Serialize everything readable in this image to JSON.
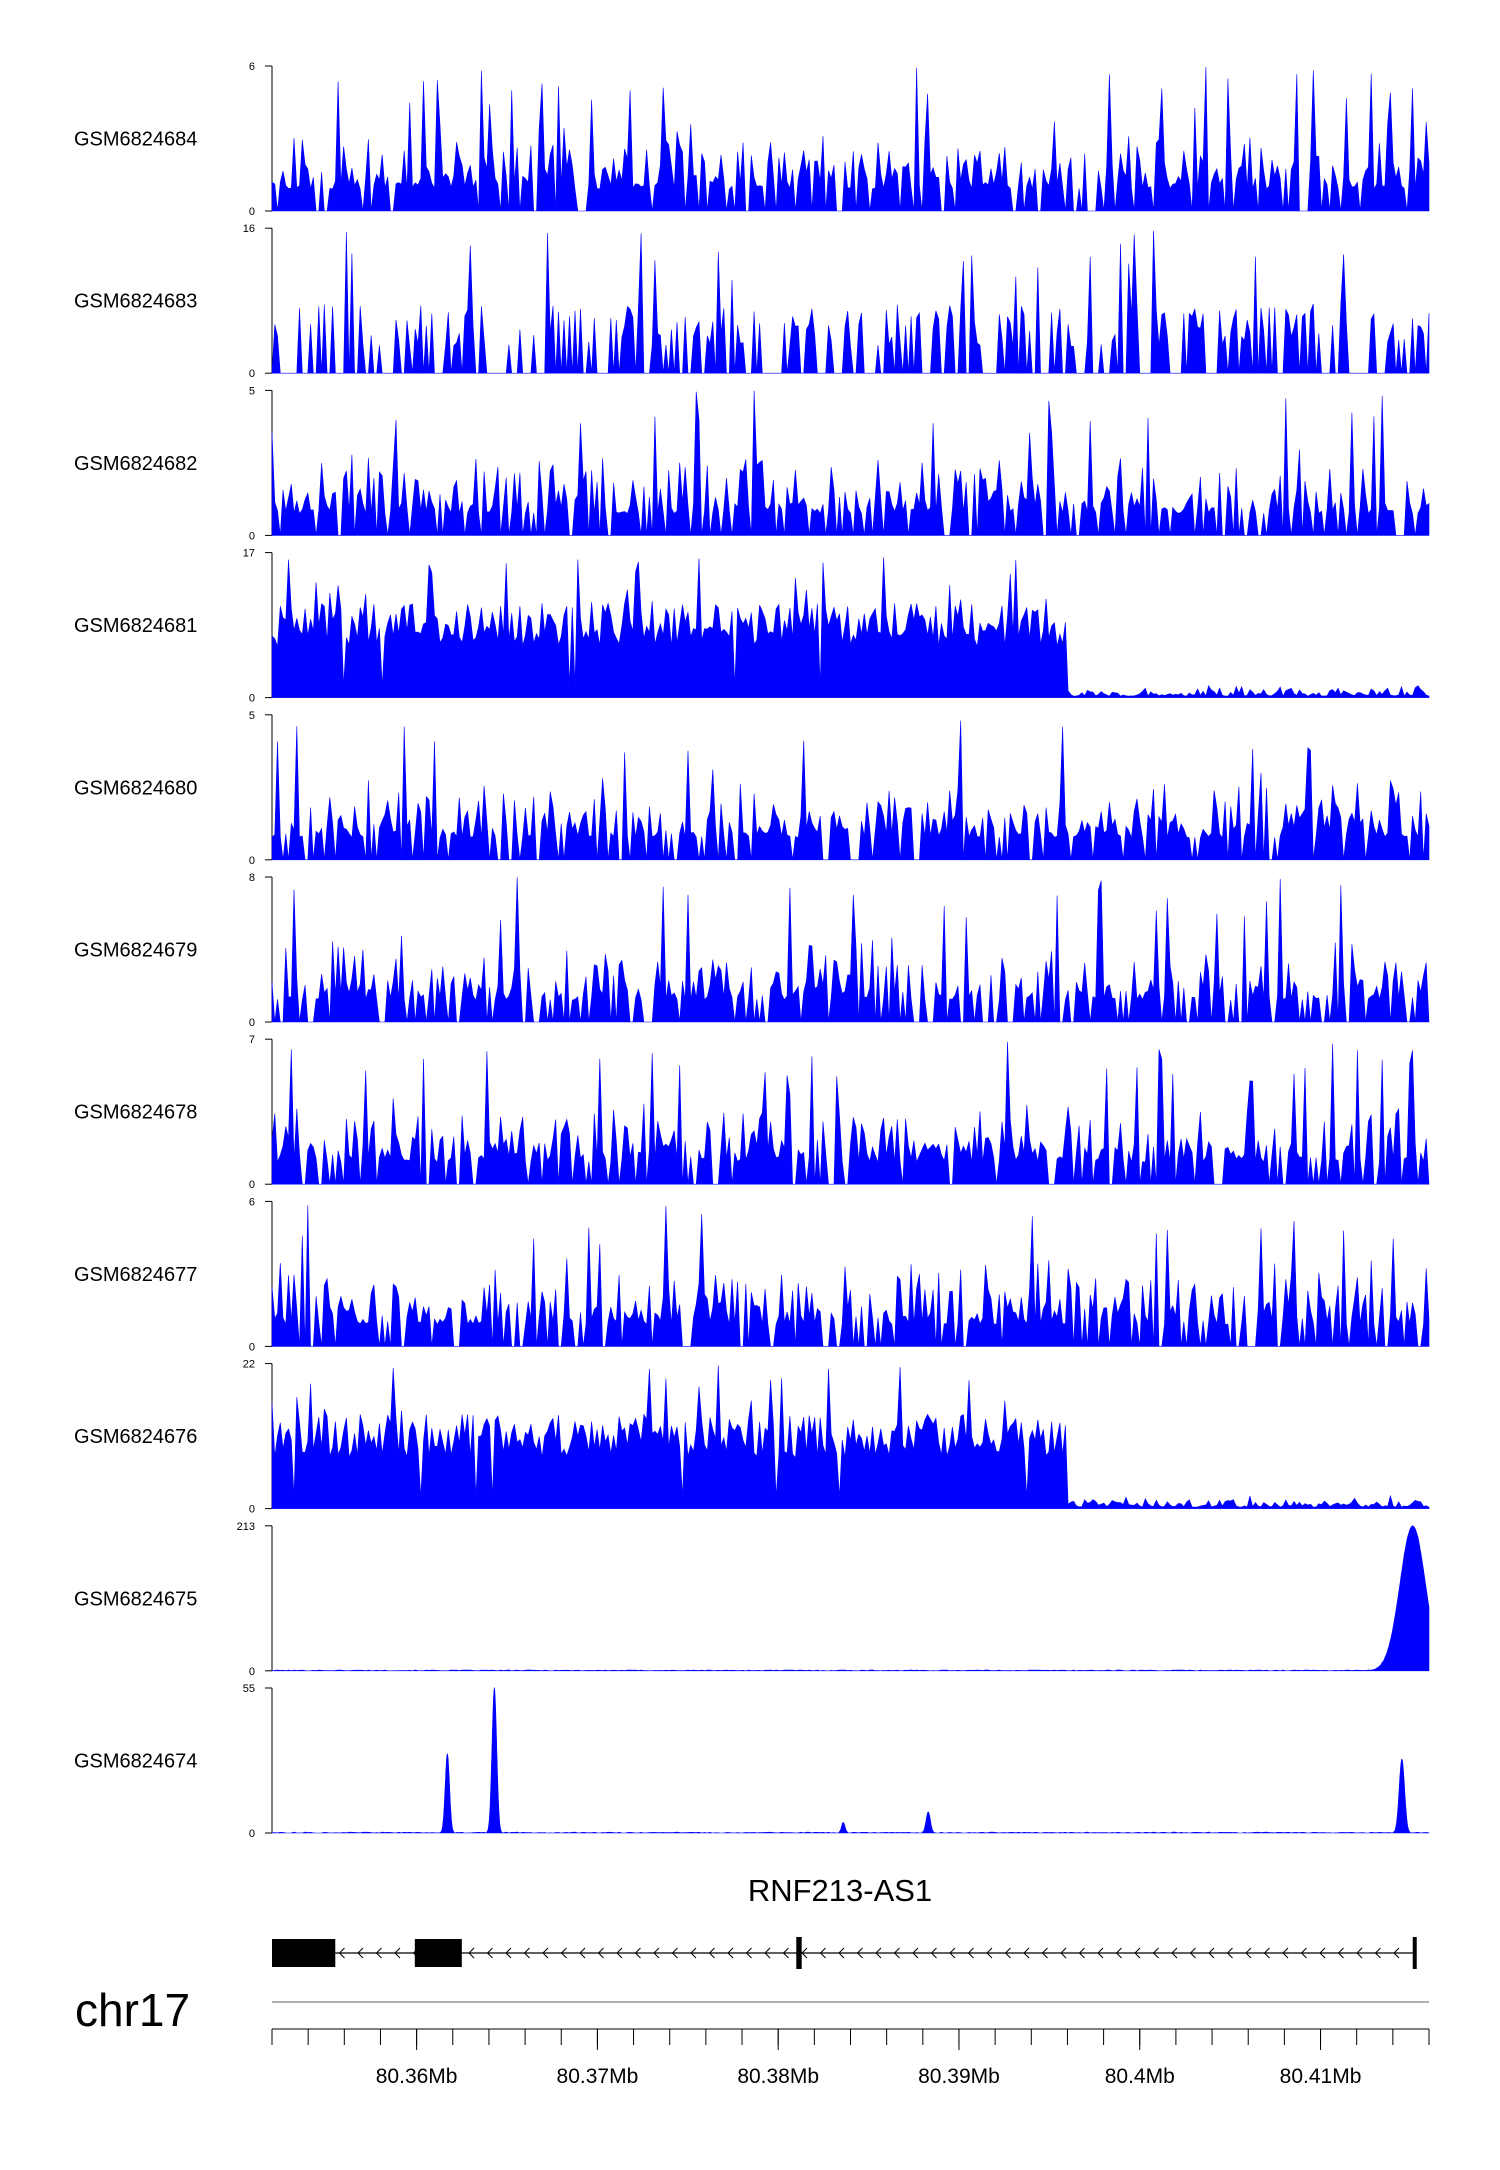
{
  "chart_data": {
    "type": "area",
    "x_unit": "Mb",
    "xlim": [
      80.352,
      80.416
    ],
    "tracks": [
      {
        "name": "GSM6824684",
        "ymax": 6,
        "ymin": 0,
        "profile": "uniform",
        "seed": 11
      },
      {
        "name": "GSM6824683",
        "ymax": 16,
        "ymin": 0,
        "profile": "sparse",
        "seed": 23
      },
      {
        "name": "GSM6824682",
        "ymax": 5,
        "ymin": 0,
        "profile": "uniform",
        "seed": 37
      },
      {
        "name": "GSM6824681",
        "ymax": 17,
        "ymin": 0,
        "profile": "dense_left",
        "seed": 41
      },
      {
        "name": "GSM6824680",
        "ymax": 5,
        "ymin": 0,
        "profile": "uniform",
        "seed": 53
      },
      {
        "name": "GSM6824679",
        "ymax": 8,
        "ymin": 0,
        "profile": "uniform",
        "seed": 67
      },
      {
        "name": "GSM6824678",
        "ymax": 7,
        "ymin": 0,
        "profile": "uniform",
        "seed": 71
      },
      {
        "name": "GSM6824677",
        "ymax": 6,
        "ymin": 0,
        "profile": "uniform",
        "seed": 83
      },
      {
        "name": "GSM6824676",
        "ymax": 22,
        "ymin": 0,
        "profile": "dense_left",
        "seed": 97
      },
      {
        "name": "GSM6824675",
        "ymax": 213,
        "ymin": 0,
        "profile": "peaks",
        "seed": 101,
        "peaks": [
          {
            "x": 80.4151,
            "h": 213,
            "w": 0.0007
          }
        ]
      },
      {
        "name": "GSM6824674",
        "ymax": 55,
        "ymin": 0,
        "profile": "peaks",
        "seed": 113,
        "peaks": [
          {
            "x": 80.3617,
            "h": 30,
            "w": 0.00012
          },
          {
            "x": 80.3643,
            "h": 55,
            "w": 0.00013
          },
          {
            "x": 80.3836,
            "h": 4,
            "w": 0.0001
          },
          {
            "x": 80.3883,
            "h": 8,
            "w": 0.00012
          },
          {
            "x": 80.4145,
            "h": 28,
            "w": 0.00015
          }
        ]
      }
    ],
    "gene": {
      "name": "RNF213-AS1",
      "start": 80.352,
      "end": 80.4153,
      "strand": "-",
      "exons": [
        [
          80.352,
          80.3555
        ],
        [
          80.3599,
          80.3625
        ],
        [
          80.381,
          80.3813
        ],
        [
          80.4151,
          80.4153
        ]
      ]
    },
    "chromosome": "chr17",
    "ticks": [
      "80.36Mb",
      "80.37Mb",
      "80.38Mb",
      "80.39Mb",
      "80.4Mb",
      "80.41Mb"
    ],
    "tick_values": [
      80.36,
      80.37,
      80.38,
      80.39,
      80.4,
      80.41
    ],
    "minor_tick_step": 0.002
  },
  "colors": {
    "signal": "#0000ff",
    "axis": "#000000",
    "gene": "#000000",
    "baseline": "#808080"
  }
}
